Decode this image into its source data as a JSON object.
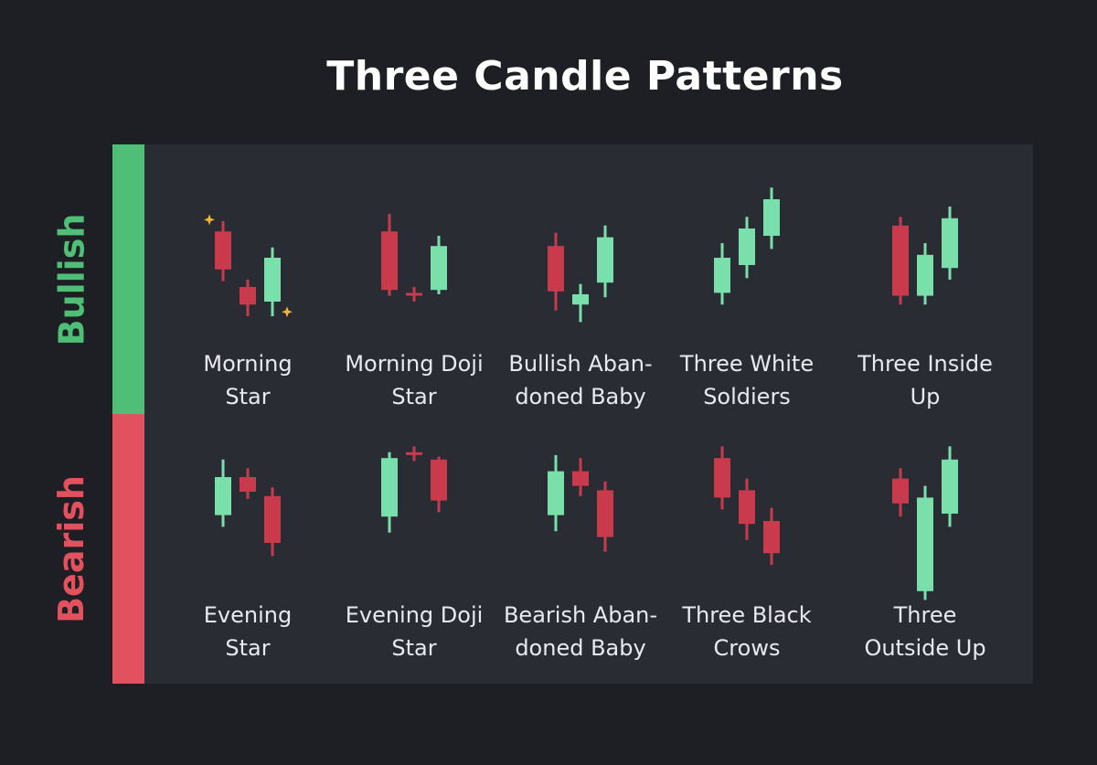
{
  "title": "Three Candle Patterns",
  "colors": {
    "bullish": "#4fbf78",
    "bearish": "#e2525e",
    "candle_up": "#79e0ab",
    "candle_down": "#c93a4d",
    "star": "#f2b632",
    "panel": "#2a2c33",
    "background": "#1e1f24"
  },
  "sections": {
    "bullish": {
      "label": "Bullish",
      "patterns": [
        {
          "lines": [
            "Morning",
            "Star"
          ],
          "stars": true,
          "candles": [
            {
              "dir": "down",
              "open": 78,
              "close": 52,
              "high": 85,
              "low": 44
            },
            {
              "dir": "down",
              "open": 40,
              "close": 28,
              "high": 45,
              "low": 20
            },
            {
              "dir": "up",
              "open": 30,
              "close": 60,
              "high": 67,
              "low": 20
            }
          ]
        },
        {
          "lines": [
            "Morning Doji",
            "Star"
          ],
          "candles": [
            {
              "dir": "down",
              "open": 78,
              "close": 38,
              "high": 90,
              "low": 34
            },
            {
              "dir": "down",
              "open": 35,
              "close": 35,
              "high": 40,
              "low": 30,
              "doji": true
            },
            {
              "dir": "up",
              "open": 38,
              "close": 68,
              "high": 75,
              "low": 35
            }
          ]
        },
        {
          "lines": [
            "Bullish Aban-",
            "doned Baby"
          ],
          "candles": [
            {
              "dir": "down",
              "open": 68,
              "close": 37,
              "high": 77,
              "low": 24
            },
            {
              "dir": "up",
              "open": 28,
              "close": 35,
              "high": 42,
              "low": 16
            },
            {
              "dir": "up",
              "open": 43,
              "close": 74,
              "high": 82,
              "low": 33
            }
          ]
        },
        {
          "lines": [
            "Three White",
            "Soldiers"
          ],
          "candles": [
            {
              "dir": "up",
              "open": 36,
              "close": 60,
              "high": 70,
              "low": 28
            },
            {
              "dir": "up",
              "open": 55,
              "close": 80,
              "high": 88,
              "low": 46
            },
            {
              "dir": "up",
              "open": 75,
              "close": 100,
              "high": 108,
              "low": 66
            }
          ]
        },
        {
          "lines": [
            "Three Inside",
            "Up"
          ],
          "candles": [
            {
              "dir": "down",
              "open": 82,
              "close": 34,
              "high": 88,
              "low": 28
            },
            {
              "dir": "up",
              "open": 34,
              "close": 62,
              "high": 70,
              "low": 28
            },
            {
              "dir": "up",
              "open": 53,
              "close": 87,
              "high": 95,
              "low": 45
            }
          ]
        }
      ]
    },
    "bearish": {
      "label": "Bearish",
      "patterns": [
        {
          "lines": [
            "Evening",
            "Star"
          ],
          "candles": [
            {
              "dir": "up",
              "open": 54,
              "close": 80,
              "high": 92,
              "low": 46
            },
            {
              "dir": "down",
              "open": 80,
              "close": 70,
              "high": 86,
              "low": 65
            },
            {
              "dir": "down",
              "open": 67,
              "close": 35,
              "high": 73,
              "low": 26
            }
          ]
        },
        {
          "lines": [
            "Evening Doji",
            "Star"
          ],
          "candles": [
            {
              "dir": "up",
              "open": 53,
              "close": 93,
              "high": 97,
              "low": 42
            },
            {
              "dir": "down",
              "open": 96,
              "close": 96,
              "high": 101,
              "low": 91,
              "doji": true
            },
            {
              "dir": "down",
              "open": 92,
              "close": 64,
              "high": 94,
              "low": 56
            }
          ]
        },
        {
          "lines": [
            "Bearish Aban-",
            "doned Baby"
          ],
          "candles": [
            {
              "dir": "up",
              "open": 54,
              "close": 84,
              "high": 95,
              "low": 43
            },
            {
              "dir": "down",
              "open": 84,
              "close": 74,
              "high": 93,
              "low": 67
            },
            {
              "dir": "down",
              "open": 71,
              "close": 39,
              "high": 77,
              "low": 29
            }
          ]
        },
        {
          "lines": [
            "Three Black",
            "Crows"
          ],
          "candles": [
            {
              "dir": "down",
              "open": 93,
              "close": 66,
              "high": 101,
              "low": 58
            },
            {
              "dir": "down",
              "open": 71,
              "close": 48,
              "high": 79,
              "low": 37
            },
            {
              "dir": "down",
              "open": 50,
              "close": 28,
              "high": 59,
              "low": 20
            }
          ]
        },
        {
          "lines": [
            "Three",
            "Outside Up"
          ],
          "candles": [
            {
              "dir": "down",
              "open": 79,
              "close": 62,
              "high": 86,
              "low": 53
            },
            {
              "dir": "up",
              "open": 2,
              "close": 66,
              "high": 74,
              "low": -4
            },
            {
              "dir": "up",
              "open": 55,
              "close": 92,
              "high": 101,
              "low": 46
            }
          ]
        }
      ]
    }
  }
}
